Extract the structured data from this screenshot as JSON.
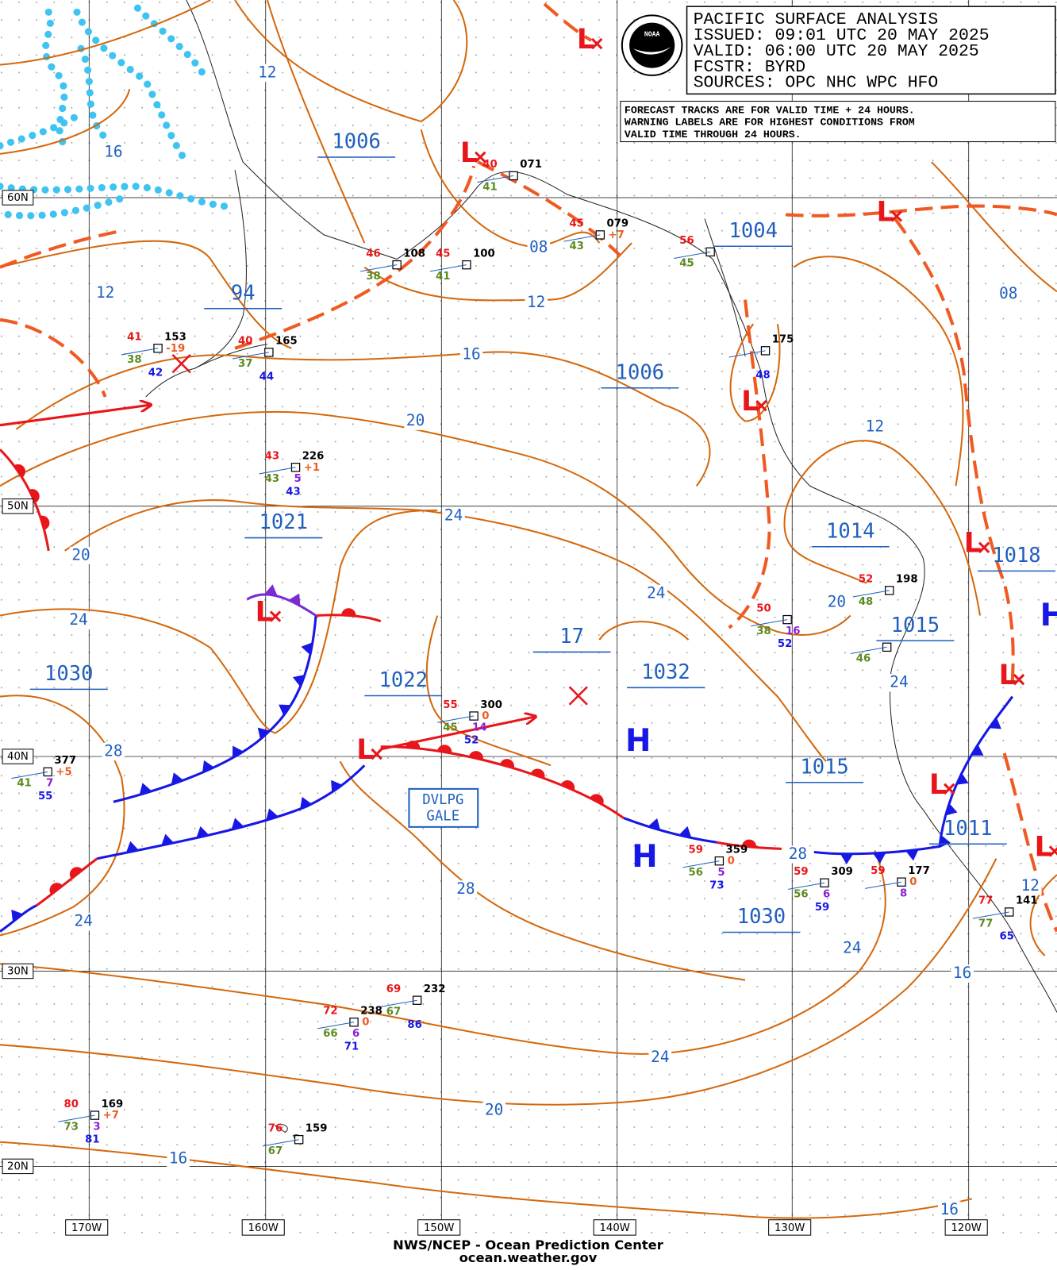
{
  "header": {
    "lines": [
      "PACIFIC SURFACE ANALYSIS",
      "ISSUED: 09:01 UTC 20 MAY 2025",
      "VALID:  06:00 UTC 20 MAY 2025",
      "FCSTR:  BYRD",
      "SOURCES: OPC NHC WPC HFO"
    ],
    "notes": [
      "FORECAST TRACKS ARE FOR VALID TIME + 24 HOURS.",
      "WARNING LABELS ARE FOR HIGHEST CONDITIONS FROM",
      "VALID TIME THROUGH 24 HOURS."
    ],
    "logo": "NOAA"
  },
  "latitudes": [
    "60N",
    "50N",
    "40N",
    "30N",
    "20N"
  ],
  "longitudes": [
    "170W",
    "160W",
    "150W",
    "140W",
    "130W",
    "120W"
  ],
  "pressure_labels": [
    "1006",
    "94",
    "1004",
    "1006",
    "1021",
    "1014",
    "1018",
    "1030",
    "1022",
    "17",
    "1032",
    "1015",
    "1015",
    "1011",
    "1030"
  ],
  "isobar_labels": [
    "12",
    "16",
    "12",
    "08",
    "12",
    "16",
    "20",
    "24",
    "20",
    "24",
    "24",
    "20",
    "24",
    "28",
    "28",
    "24",
    "28",
    "24",
    "16",
    "12",
    "24",
    "20",
    "16",
    "16",
    "08",
    "12"
  ],
  "lows": [
    "L",
    "L",
    "L",
    "L",
    "L",
    "L",
    "L",
    "L",
    "L",
    "L"
  ],
  "highs": [
    "H",
    "H",
    "H"
  ],
  "warning": [
    "DVLPG",
    "GALE"
  ],
  "stations": [
    {
      "temp": "41",
      "pressure": "153",
      "dew": "38",
      "sst": "42",
      "tendency": "-19"
    },
    {
      "temp": "40",
      "pressure": "165",
      "dew": "37",
      "sst": "44"
    },
    {
      "temp": "46",
      "pressure": "108",
      "dew": "38"
    },
    {
      "temp": "45",
      "pressure": "100",
      "dew": "41"
    },
    {
      "temp": "40",
      "pressure": "071",
      "dew": "41"
    },
    {
      "temp": "45",
      "pressure": "079",
      "dew": "43",
      "tendency": "+7"
    },
    {
      "temp": "56",
      "dew": "45"
    },
    {
      "pressure": "175",
      "sst": "48"
    },
    {
      "temp": "43",
      "pressure": "226",
      "dew": "43",
      "other": "5",
      "sst": "43",
      "tendency": "+1"
    },
    {
      "temp": "55",
      "pressure": "300",
      "dew": "45",
      "other": "14",
      "sst": "52",
      "tendency": "0"
    },
    {
      "pressure": "377",
      "dew": "41",
      "other": "7",
      "sst": "55",
      "tendency": "+5"
    },
    {
      "temp": "50",
      "dew": "38",
      "other": "16",
      "sst": "52"
    },
    {
      "temp": "52",
      "pressure": "198",
      "dew": "48"
    },
    {
      "dew": "46"
    },
    {
      "temp": "59",
      "pressure": "359",
      "dew": "56",
      "other": "5",
      "sst": "73",
      "tendency": "0"
    },
    {
      "temp": "59",
      "pressure": "309",
      "dew": "56",
      "other": "6",
      "sst": "59"
    },
    {
      "temp": "59",
      "pressure": "177",
      "other": "8",
      "tendency": "0"
    },
    {
      "temp": "77",
      "pressure": "141",
      "dew": "77",
      "sst": "65"
    },
    {
      "temp": "69",
      "pressure": "232",
      "dew": "67",
      "sst": "86"
    },
    {
      "temp": "72",
      "pressure": "238",
      "dew": "66",
      "other": "6",
      "sst": "71",
      "tendency": "0"
    },
    {
      "temp": "80",
      "pressure": "169",
      "dew": "73",
      "other": "3",
      "sst": "81",
      "tendency": "+7"
    },
    {
      "temp": "76",
      "pressure": "159",
      "dew": "67"
    }
  ],
  "footer": [
    "NWS/NCEP - Ocean Prediction Center",
    "ocean.weather.gov"
  ]
}
